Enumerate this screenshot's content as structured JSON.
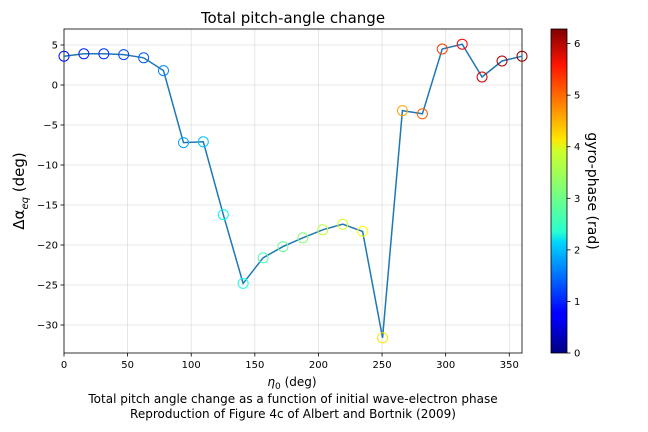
{
  "chart_data": {
    "type": "line",
    "title": "Total pitch-angle change",
    "xlabel": "η",
    "xlabel_sub": "0",
    "xlabel_unit": " (deg)",
    "ylabel": "Δα",
    "ylabel_sub": "eq",
    "ylabel_unit": " (deg)",
    "xlim": [
      0,
      360
    ],
    "ylim": [
      -33.5,
      7
    ],
    "x_ticks": [
      0,
      50,
      100,
      150,
      200,
      250,
      300,
      350
    ],
    "y_ticks": [
      5,
      0,
      -5,
      -10,
      -15,
      -20,
      -25,
      -30
    ],
    "y_tick_labels": [
      "5",
      "0",
      "−5",
      "−10",
      "−15",
      "−20",
      "−25",
      "−30"
    ],
    "grid": true,
    "line_color": "#1f77b4",
    "x": [
      0,
      15.6,
      31.3,
      46.9,
      62.6,
      78.2,
      93.9,
      109.5,
      125.2,
      140.8,
      156.5,
      172.1,
      187.8,
      203.4,
      219.1,
      234.7,
      250.4,
      266.0,
      281.7,
      297.3,
      313.0,
      328.6,
      344.3,
      360
    ],
    "y": [
      3.6,
      3.9,
      3.9,
      3.8,
      3.4,
      1.8,
      -7.2,
      -7.1,
      -16.2,
      -24.8,
      -21.6,
      -20.2,
      -19.1,
      -18.1,
      -17.4,
      -18.3,
      -31.6,
      -3.2,
      -3.6,
      4.5,
      5.1,
      1.0,
      3.0,
      3.6
    ],
    "gyro_phase": [
      0.9,
      1.0,
      1.1,
      1.2,
      1.35,
      1.6,
      1.8,
      2.0,
      2.3,
      2.5,
      2.8,
      3.0,
      3.2,
      3.5,
      3.7,
      3.9,
      4.1,
      4.5,
      4.9,
      5.1,
      5.5,
      5.8,
      6.0,
      6.2
    ],
    "colorbar": {
      "label": "gyro-phase (rad)",
      "range": [
        0,
        6.2832
      ],
      "ticks": [
        0,
        1,
        2,
        3,
        4,
        5,
        6
      ],
      "colormap": "jet"
    },
    "caption_lines": [
      "Total pitch angle change as a function of initial wave-electron phase",
      "Reproduction of Figure 4c of Albert and Bortnik (2009)"
    ]
  }
}
